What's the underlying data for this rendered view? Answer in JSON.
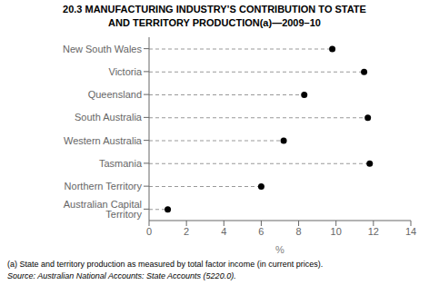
{
  "chart_data": {
    "type": "dot",
    "title": "20.3   MANUFACTURING INDUSTRY’S CONTRIBUTION TO STATE\nAND TERRITORY PRODUCTION(a)—2009–10",
    "categories": [
      "New South Wales",
      "Victoria",
      "Queensland",
      "South Australia",
      "Western Australia",
      "Tasmania",
      "Northern Territory",
      "Australian Capital Territory"
    ],
    "values": [
      9.8,
      11.5,
      8.3,
      11.7,
      7.2,
      11.8,
      6.0,
      1.0
    ],
    "x_label": "%",
    "xlim": [
      0,
      14
    ],
    "xticks": [
      0,
      2,
      4,
      6,
      8,
      10,
      12,
      14
    ],
    "orientation": "horizontal",
    "color": "#000000",
    "marker": "circle",
    "line_style": "dashed",
    "annotations": [
      "(a) State and territory production as measured by total factor income (in current prices).",
      "Source: Australian National Accounts: State Accounts (5220.0)."
    ]
  }
}
